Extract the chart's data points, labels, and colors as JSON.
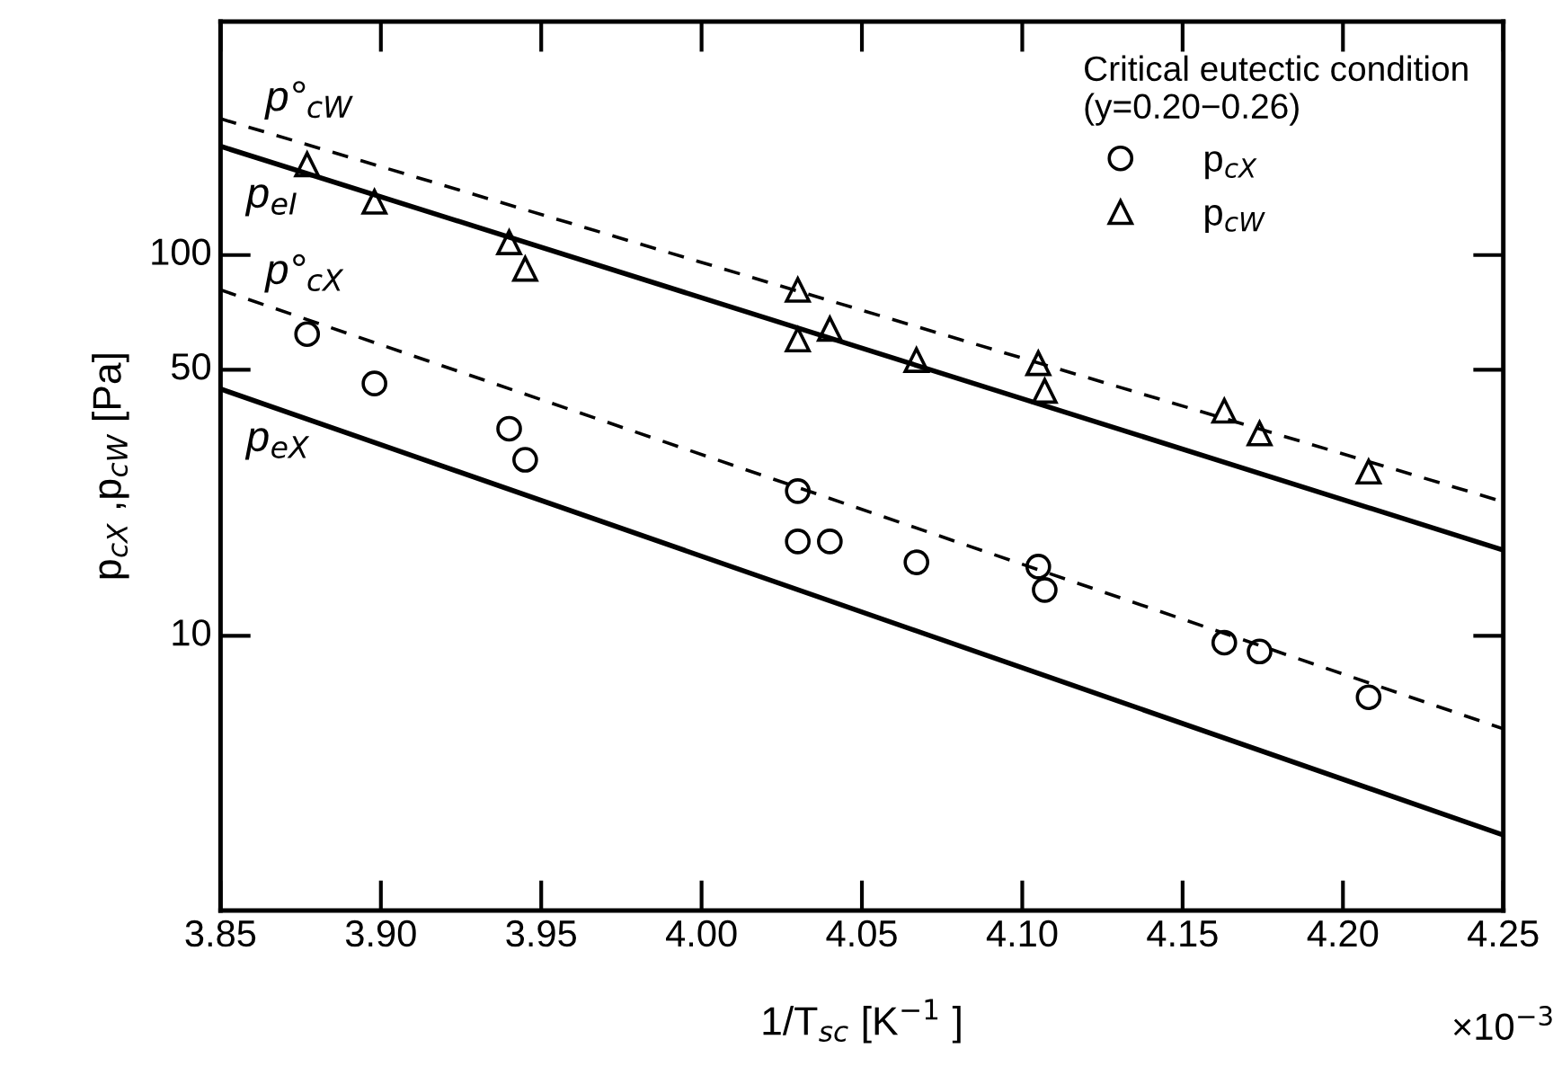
{
  "chart_data": {
    "type": "scatter",
    "xlabel": "1/T$_{sc}$ [K$^{−1}$ ]",
    "ylabel": "p$_{cX}$ ,p$_{cW}$ [Pa]",
    "legend_title": "Critical eutectic condition\n(y=0.20−0.26)",
    "legend": "top right",
    "annotations": [
      "×10$^{−3}$",
      "p°$_{cW}$",
      "p$_{eI}$",
      "p°$_{cX}$",
      "p$_{eX}$"
    ],
    "log": "y",
    "grid": false,
    "xlim": [
      3.85,
      4.25
    ],
    "xticks": [
      3.85,
      {
        "value": 3.9,
        "label": "3.90"
      },
      3.95,
      {
        "value": 4.0,
        "label": "4.00"
      },
      4.05,
      {
        "value": 4.1,
        "label": "4.10"
      },
      4.15,
      {
        "value": 4.2,
        "label": "4.20"
      },
      4.25
    ],
    "ylim": [
      1.9,
      410
    ],
    "yticks": [
      10,
      50,
      100
    ],
    "series": [
      {
        "name": "p$_{cX}$",
        "type": "scatter",
        "marker": "circle",
        "color": "#000000",
        "x": [
          3.877,
          3.898,
          3.94,
          3.945,
          4.03,
          4.03,
          4.04,
          4.067,
          4.105,
          4.107,
          4.163,
          4.174,
          4.208
        ],
        "values": [
          62,
          46,
          35,
          29,
          24,
          17.7,
          17.7,
          15.6,
          15.2,
          13.2,
          9.6,
          9.1,
          6.9
        ]
      },
      {
        "name": "p$_{cW}$",
        "marker": "triangle",
        "color": "#000000",
        "x": [
          3.877,
          3.898,
          3.94,
          3.945,
          4.03,
          4.03,
          4.04,
          4.067,
          4.105,
          4.107,
          4.163,
          4.174,
          4.208
        ],
        "values": [
          173,
          138,
          108,
          92,
          81,
          60,
          64,
          53,
          52,
          44,
          39,
          34,
          27
        ]
      },
      {
        "type": "line",
        "line_style": "dashed",
        "color": "#000000",
        "x": [
          3.85,
          4.25
        ],
        "values": [
          228,
          22.5
        ]
      },
      {
        "type": "line",
        "line_style": "solid",
        "color": "#000000",
        "x": [
          3.85,
          4.25
        ],
        "values": [
          193,
          16.8
        ]
      },
      {
        "type": "line",
        "line_style": "dashed",
        "color": "#000000",
        "x": [
          3.85,
          4.25
        ],
        "values": [
          81,
          5.7
        ]
      },
      {
        "type": "line",
        "line_style": "solid",
        "color": "#000000",
        "x": [
          3.85,
          4.25
        ],
        "values": [
          44.5,
          3.0
        ]
      }
    ]
  }
}
